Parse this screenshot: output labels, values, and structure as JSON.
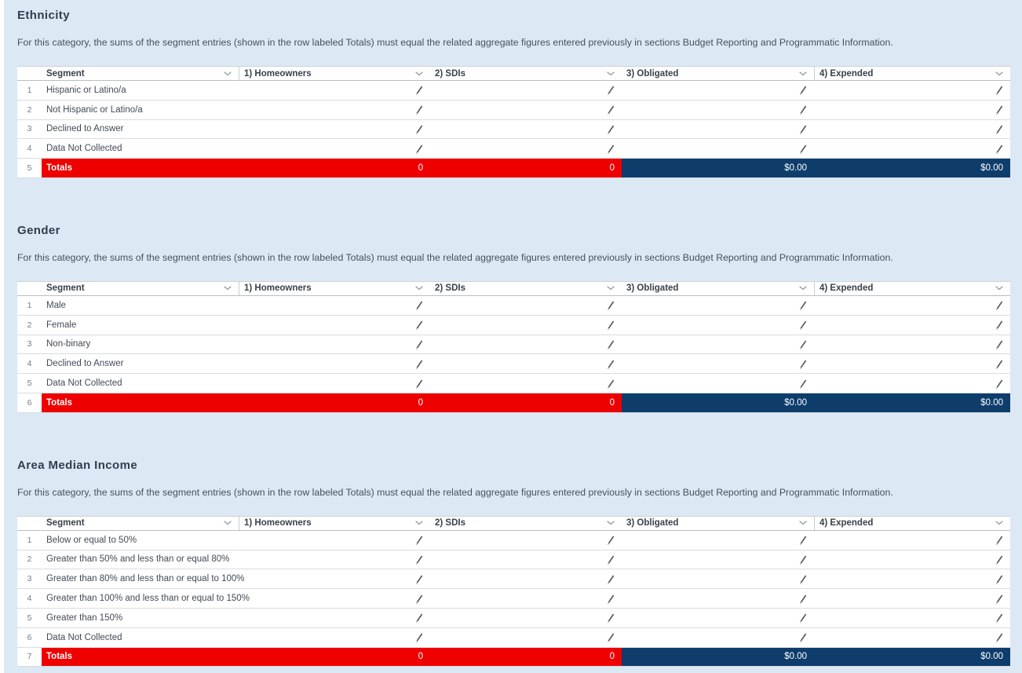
{
  "description": "For this category, the sums of the segment entries (shown in the row labeled Totals) must equal the related aggregate figures entered previously in sections Budget Reporting and Programmatic Information.",
  "columns": [
    {
      "key": "segment",
      "label": "Segment"
    },
    {
      "key": "homeowners",
      "label": "1) Homeowners"
    },
    {
      "key": "sdis",
      "label": "2) SDIs"
    },
    {
      "key": "obligated",
      "label": "3) Obligated"
    },
    {
      "key": "expended",
      "label": "4) Expended"
    }
  ],
  "sections": [
    {
      "title": "Ethnicity",
      "segments": [
        "Hispanic or Latino/a",
        "Not Hispanic or Latino/a",
        "Declined to Answer",
        "Data Not Collected"
      ],
      "totals": {
        "label": "Totals",
        "homeowners": "0",
        "sdis": "0",
        "obligated": "$0.00",
        "expended": "$0.00"
      }
    },
    {
      "title": "Gender",
      "segments": [
        "Male",
        "Female",
        "Non-binary",
        "Declined to Answer",
        "Data Not Collected"
      ],
      "totals": {
        "label": "Totals",
        "homeowners": "0",
        "sdis": "0",
        "obligated": "$0.00",
        "expended": "$0.00"
      }
    },
    {
      "title": "Area Median Income",
      "segments": [
        "Below or equal to 50%",
        "Greater than 50% and less than or equal 80%",
        "Greater than 80% and less than or equal to 100%",
        "Greater than 100% and less than or equal to 150%",
        "Greater than 150%",
        "Data Not Collected"
      ],
      "totals": {
        "label": "Totals",
        "homeowners": "0",
        "sdis": "0",
        "obligated": "$0.00",
        "expended": "$0.00"
      }
    }
  ],
  "colors": {
    "totals_red": "#ee0000",
    "totals_navy": "#0e3d6c",
    "page_background": "#dce8f4"
  },
  "icons": {
    "edit": "pencil-icon",
    "column_menu": "chevron-down-icon"
  }
}
